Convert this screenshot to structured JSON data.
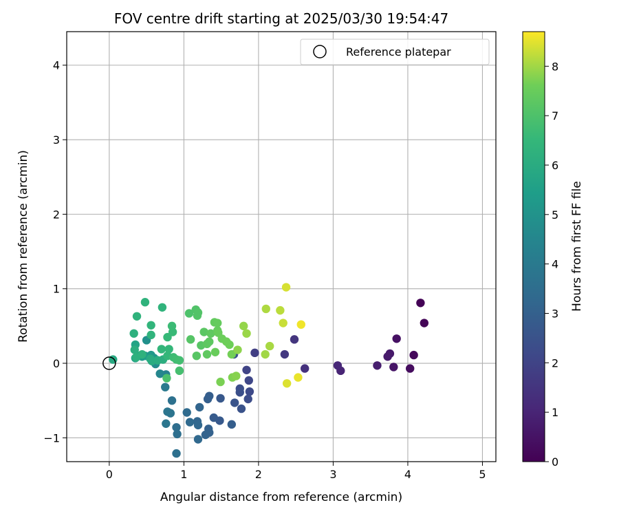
{
  "chart_data": {
    "type": "scatter",
    "title": "FOV centre drift starting at 2025/03/30 19:54:47",
    "xlabel": "Angular distance from reference (arcmin)",
    "ylabel": "Rotation from reference (arcmin)",
    "xlim": [
      -0.57,
      5.18
    ],
    "ylim": [
      -1.32,
      4.45
    ],
    "x_ticks": [
      0,
      1,
      2,
      3,
      4,
      5
    ],
    "y_ticks": [
      -1,
      0,
      1,
      2,
      3,
      4
    ],
    "x_tick_labels": [
      "0",
      "1",
      "2",
      "3",
      "4",
      "5"
    ],
    "y_tick_labels": [
      "−1",
      "0",
      "1",
      "2",
      "3",
      "4"
    ],
    "grid": true,
    "legend": {
      "position": "top-right",
      "entries": [
        "Reference platepar"
      ]
    },
    "reference_point": {
      "x": 0,
      "y": 0
    },
    "colorbar": {
      "label": "Hours from first FF file",
      "colormap": "viridis",
      "range": [
        0,
        8.7
      ],
      "ticks": [
        0,
        1,
        2,
        3,
        4,
        5,
        6,
        7,
        8
      ],
      "tick_labels": [
        "0",
        "1",
        "2",
        "3",
        "4",
        "5",
        "6",
        "7",
        "8"
      ]
    },
    "points": [
      {
        "x": 4.17,
        "y": 0.81,
        "h": 0.05
      },
      {
        "x": 4.22,
        "y": 0.54,
        "h": 0.1
      },
      {
        "x": 4.08,
        "y": 0.11,
        "h": 0.2
      },
      {
        "x": 4.03,
        "y": -0.07,
        "h": 0.3
      },
      {
        "x": 3.85,
        "y": 0.33,
        "h": 0.45
      },
      {
        "x": 3.81,
        "y": -0.05,
        "h": 0.55
      },
      {
        "x": 3.76,
        "y": 0.13,
        "h": 0.65
      },
      {
        "x": 3.73,
        "y": 0.09,
        "h": 0.7
      },
      {
        "x": 3.59,
        "y": -0.03,
        "h": 0.8
      },
      {
        "x": 3.1,
        "y": -0.1,
        "h": 1.0
      },
      {
        "x": 3.06,
        "y": -0.03,
        "h": 1.1
      },
      {
        "x": 2.62,
        "y": -0.07,
        "h": 1.4
      },
      {
        "x": 2.48,
        "y": 0.32,
        "h": 1.5
      },
      {
        "x": 2.35,
        "y": 0.12,
        "h": 1.6
      },
      {
        "x": 1.95,
        "y": 0.14,
        "h": 1.8
      },
      {
        "x": 1.84,
        "y": -0.09,
        "h": 2.0
      },
      {
        "x": 1.87,
        "y": -0.23,
        "h": 2.1
      },
      {
        "x": 1.88,
        "y": -0.38,
        "h": 2.2
      },
      {
        "x": 1.86,
        "y": -0.48,
        "h": 2.3
      },
      {
        "x": 1.75,
        "y": -0.34,
        "h": 2.35
      },
      {
        "x": 1.75,
        "y": -0.39,
        "h": 2.4
      },
      {
        "x": 1.77,
        "y": -0.61,
        "h": 2.5
      },
      {
        "x": 1.68,
        "y": -0.53,
        "h": 2.55
      },
      {
        "x": 1.67,
        "y": 0.12,
        "h": 2.5
      },
      {
        "x": 1.64,
        "y": -0.82,
        "h": 2.9
      },
      {
        "x": 1.49,
        "y": -0.47,
        "h": 2.7
      },
      {
        "x": 1.48,
        "y": -0.77,
        "h": 2.75
      },
      {
        "x": 1.4,
        "y": -0.73,
        "h": 2.8
      },
      {
        "x": 1.34,
        "y": -0.44,
        "h": 2.9
      },
      {
        "x": 1.32,
        "y": -0.48,
        "h": 2.95
      },
      {
        "x": 1.33,
        "y": -0.88,
        "h": 3.0
      },
      {
        "x": 1.34,
        "y": -0.93,
        "h": 3.05
      },
      {
        "x": 1.29,
        "y": -0.96,
        "h": 3.1
      },
      {
        "x": 1.21,
        "y": -0.59,
        "h": 3.15
      },
      {
        "x": 1.18,
        "y": -0.78,
        "h": 3.2
      },
      {
        "x": 1.19,
        "y": -0.83,
        "h": 3.25
      },
      {
        "x": 1.19,
        "y": -1.02,
        "h": 3.3
      },
      {
        "x": 1.08,
        "y": -0.79,
        "h": 3.35
      },
      {
        "x": 1.04,
        "y": -0.66,
        "h": 3.4
      },
      {
        "x": 0.9,
        "y": -0.86,
        "h": 3.5
      },
      {
        "x": 0.91,
        "y": -0.95,
        "h": 3.55
      },
      {
        "x": 0.9,
        "y": -1.21,
        "h": 3.6
      },
      {
        "x": 0.84,
        "y": -0.5,
        "h": 3.65
      },
      {
        "x": 0.82,
        "y": -0.67,
        "h": 3.75
      },
      {
        "x": 0.78,
        "y": -0.65,
        "h": 3.8
      },
      {
        "x": 0.76,
        "y": -0.81,
        "h": 3.85
      },
      {
        "x": 0.75,
        "y": -0.32,
        "h": 4.0
      },
      {
        "x": 0.76,
        "y": -0.15,
        "h": 4.3
      },
      {
        "x": 0.68,
        "y": -0.14,
        "h": 4.5
      },
      {
        "x": 0.62,
        "y": -0.01,
        "h": 4.7
      },
      {
        "x": 0.5,
        "y": 0.31,
        "h": 4.9
      },
      {
        "x": 0.6,
        "y": 0.07,
        "h": 5.0
      },
      {
        "x": 0.56,
        "y": 0.11,
        "h": 5.2
      },
      {
        "x": 0.48,
        "y": 0.1,
        "h": 5.3
      },
      {
        "x": 0.44,
        "y": 0.09,
        "h": 5.4
      },
      {
        "x": 0.4,
        "y": 0.1,
        "h": 5.5
      },
      {
        "x": 0.35,
        "y": 0.07,
        "h": 5.6
      },
      {
        "x": 0.35,
        "y": 0.25,
        "h": 5.7
      },
      {
        "x": 0.05,
        "y": 0.05,
        "h": 5.9
      },
      {
        "x": 0.55,
        "y": 0.06,
        "h": 5.95
      },
      {
        "x": 0.57,
        "y": 0.03,
        "h": 6.0
      },
      {
        "x": 0.65,
        "y": 0.04,
        "h": 6.05
      },
      {
        "x": 0.72,
        "y": 0.05,
        "h": 6.1
      },
      {
        "x": 0.34,
        "y": 0.18,
        "h": 6.15
      },
      {
        "x": 0.36,
        "y": 0.08,
        "h": 6.2
      },
      {
        "x": 0.33,
        "y": 0.4,
        "h": 6.2
      },
      {
        "x": 0.44,
        "y": 0.12,
        "h": 6.25
      },
      {
        "x": 0.48,
        "y": 0.82,
        "h": 6.3
      },
      {
        "x": 0.37,
        "y": 0.63,
        "h": 6.3
      },
      {
        "x": 0.71,
        "y": 0.75,
        "h": 6.35
      },
      {
        "x": 0.56,
        "y": 0.38,
        "h": 6.35
      },
      {
        "x": 0.56,
        "y": 0.51,
        "h": 6.4
      },
      {
        "x": 0.7,
        "y": 0.19,
        "h": 6.45
      },
      {
        "x": 0.78,
        "y": 0.1,
        "h": 6.5
      },
      {
        "x": 0.8,
        "y": 0.19,
        "h": 6.5
      },
      {
        "x": 0.78,
        "y": 0.35,
        "h": 6.55
      },
      {
        "x": 0.85,
        "y": 0.42,
        "h": 6.6
      },
      {
        "x": 0.84,
        "y": 0.5,
        "h": 6.65
      },
      {
        "x": 0.86,
        "y": 0.08,
        "h": 6.7
      },
      {
        "x": 0.9,
        "y": 0.05,
        "h": 6.75
      },
      {
        "x": 0.94,
        "y": 0.04,
        "h": 6.8
      },
      {
        "x": 0.94,
        "y": -0.1,
        "h": 6.85
      },
      {
        "x": 0.77,
        "y": -0.2,
        "h": 6.95
      },
      {
        "x": 1.07,
        "y": 0.67,
        "h": 7.0
      },
      {
        "x": 1.16,
        "y": 0.72,
        "h": 7.05
      },
      {
        "x": 1.19,
        "y": 0.68,
        "h": 7.1
      },
      {
        "x": 1.18,
        "y": 0.64,
        "h": 7.1
      },
      {
        "x": 1.09,
        "y": 0.32,
        "h": 7.15
      },
      {
        "x": 1.17,
        "y": 0.1,
        "h": 7.2
      },
      {
        "x": 1.23,
        "y": 0.24,
        "h": 7.2
      },
      {
        "x": 1.27,
        "y": 0.42,
        "h": 7.25
      },
      {
        "x": 1.31,
        "y": 0.26,
        "h": 7.3
      },
      {
        "x": 1.34,
        "y": 0.29,
        "h": 7.3
      },
      {
        "x": 1.36,
        "y": 0.4,
        "h": 7.35
      },
      {
        "x": 1.31,
        "y": 0.12,
        "h": 7.35
      },
      {
        "x": 1.41,
        "y": 0.55,
        "h": 7.4
      },
      {
        "x": 1.45,
        "y": 0.54,
        "h": 7.45
      },
      {
        "x": 1.45,
        "y": 0.44,
        "h": 7.45
      },
      {
        "x": 1.46,
        "y": 0.41,
        "h": 7.5
      },
      {
        "x": 1.42,
        "y": 0.15,
        "h": 7.5
      },
      {
        "x": 1.51,
        "y": 0.33,
        "h": 7.55
      },
      {
        "x": 1.57,
        "y": 0.29,
        "h": 7.6
      },
      {
        "x": 1.61,
        "y": 0.25,
        "h": 7.6
      },
      {
        "x": 1.64,
        "y": 0.12,
        "h": 7.65
      },
      {
        "x": 1.49,
        "y": -0.25,
        "h": 7.7
      },
      {
        "x": 1.65,
        "y": -0.19,
        "h": 7.75
      },
      {
        "x": 1.7,
        "y": -0.17,
        "h": 7.8
      },
      {
        "x": 1.72,
        "y": 0.18,
        "h": 7.85
      },
      {
        "x": 1.8,
        "y": 0.5,
        "h": 7.9
      },
      {
        "x": 1.84,
        "y": 0.4,
        "h": 7.95
      },
      {
        "x": 2.09,
        "y": 0.12,
        "h": 8.0
      },
      {
        "x": 2.15,
        "y": 0.23,
        "h": 8.05
      },
      {
        "x": 2.1,
        "y": 0.73,
        "h": 8.1
      },
      {
        "x": 2.29,
        "y": 0.71,
        "h": 8.2
      },
      {
        "x": 2.33,
        "y": 0.54,
        "h": 8.3
      },
      {
        "x": 2.37,
        "y": 1.02,
        "h": 8.4
      },
      {
        "x": 2.38,
        "y": -0.27,
        "h": 8.45
      },
      {
        "x": 2.53,
        "y": -0.19,
        "h": 8.55
      },
      {
        "x": 2.57,
        "y": 0.52,
        "h": 8.6
      }
    ]
  }
}
